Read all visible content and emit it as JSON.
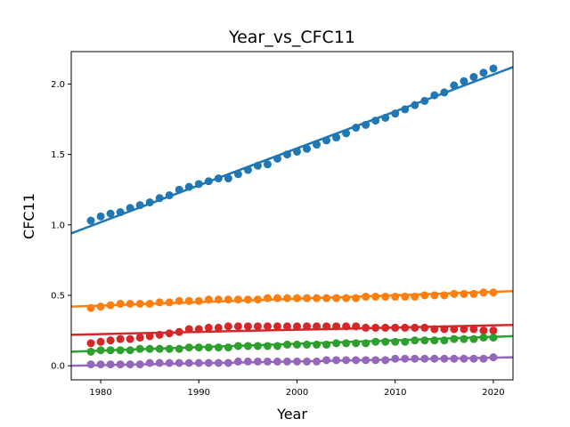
{
  "chart_data": {
    "type": "scatter",
    "title": "Year_vs_CFC11",
    "xlabel": "Year",
    "ylabel": "CFC11",
    "xlim": [
      1977,
      2022
    ],
    "ylim": [
      -0.1,
      2.23
    ],
    "xticks": [
      1980,
      1990,
      2000,
      2010,
      2020
    ],
    "xtick_labels": [
      "1980",
      "1990",
      "2000",
      "2010",
      "2020"
    ],
    "yticks": [
      0.0,
      0.5,
      1.0,
      1.5,
      2.0
    ],
    "ytick_labels": [
      "0.0",
      "0.5",
      "1.0",
      "1.5",
      "2.0"
    ],
    "grid": false,
    "legend": "none",
    "x": [
      1979,
      1980,
      1981,
      1982,
      1983,
      1984,
      1985,
      1986,
      1987,
      1988,
      1989,
      1990,
      1991,
      1992,
      1993,
      1994,
      1995,
      1996,
      1997,
      1998,
      1999,
      2000,
      2001,
      2002,
      2003,
      2004,
      2005,
      2006,
      2007,
      2008,
      2009,
      2010,
      2011,
      2012,
      2013,
      2014,
      2015,
      2016,
      2017,
      2018,
      2019,
      2020
    ],
    "series": [
      {
        "color": "#1f77b4",
        "values": [
          1.03,
          1.06,
          1.08,
          1.09,
          1.12,
          1.14,
          1.16,
          1.19,
          1.21,
          1.25,
          1.27,
          1.29,
          1.31,
          1.33,
          1.33,
          1.36,
          1.39,
          1.42,
          1.43,
          1.47,
          1.5,
          1.52,
          1.54,
          1.57,
          1.6,
          1.62,
          1.65,
          1.69,
          1.71,
          1.74,
          1.76,
          1.79,
          1.82,
          1.85,
          1.88,
          1.92,
          1.94,
          1.99,
          2.02,
          2.05,
          2.08,
          2.11
        ],
        "fit": [
          0.94,
          2.12
        ]
      },
      {
        "color": "#ff7f0e",
        "values": [
          0.41,
          0.42,
          0.43,
          0.44,
          0.44,
          0.44,
          0.44,
          0.45,
          0.45,
          0.46,
          0.46,
          0.46,
          0.47,
          0.47,
          0.47,
          0.47,
          0.47,
          0.47,
          0.48,
          0.48,
          0.48,
          0.48,
          0.48,
          0.48,
          0.48,
          0.48,
          0.48,
          0.48,
          0.49,
          0.49,
          0.49,
          0.49,
          0.49,
          0.49,
          0.5,
          0.5,
          0.5,
          0.51,
          0.51,
          0.51,
          0.52,
          0.52
        ],
        "fit": [
          0.42,
          0.53
        ]
      },
      {
        "color": "#d62728",
        "values": [
          0.16,
          0.17,
          0.18,
          0.19,
          0.19,
          0.2,
          0.21,
          0.22,
          0.23,
          0.24,
          0.26,
          0.26,
          0.27,
          0.27,
          0.28,
          0.28,
          0.28,
          0.28,
          0.28,
          0.28,
          0.28,
          0.28,
          0.28,
          0.28,
          0.28,
          0.28,
          0.28,
          0.28,
          0.27,
          0.27,
          0.27,
          0.27,
          0.27,
          0.27,
          0.27,
          0.26,
          0.26,
          0.26,
          0.26,
          0.26,
          0.25,
          0.25
        ],
        "fit": [
          0.22,
          0.29
        ]
      },
      {
        "color": "#2ca02c",
        "values": [
          0.1,
          0.11,
          0.11,
          0.11,
          0.11,
          0.12,
          0.12,
          0.12,
          0.12,
          0.12,
          0.13,
          0.13,
          0.13,
          0.13,
          0.13,
          0.14,
          0.14,
          0.14,
          0.14,
          0.14,
          0.15,
          0.15,
          0.15,
          0.15,
          0.15,
          0.16,
          0.16,
          0.16,
          0.16,
          0.17,
          0.17,
          0.17,
          0.17,
          0.18,
          0.18,
          0.18,
          0.18,
          0.19,
          0.19,
          0.19,
          0.2,
          0.2
        ],
        "fit": [
          0.1,
          0.21
        ]
      },
      {
        "color": "#9467bd",
        "values": [
          0.01,
          0.01,
          0.01,
          0.01,
          0.01,
          0.01,
          0.02,
          0.02,
          0.02,
          0.02,
          0.02,
          0.02,
          0.02,
          0.02,
          0.02,
          0.03,
          0.03,
          0.03,
          0.03,
          0.03,
          0.03,
          0.03,
          0.03,
          0.03,
          0.04,
          0.04,
          0.04,
          0.04,
          0.04,
          0.04,
          0.04,
          0.05,
          0.05,
          0.05,
          0.05,
          0.05,
          0.05,
          0.05,
          0.05,
          0.05,
          0.05,
          0.06
        ],
        "fit": [
          0.0,
          0.06
        ]
      }
    ]
  }
}
